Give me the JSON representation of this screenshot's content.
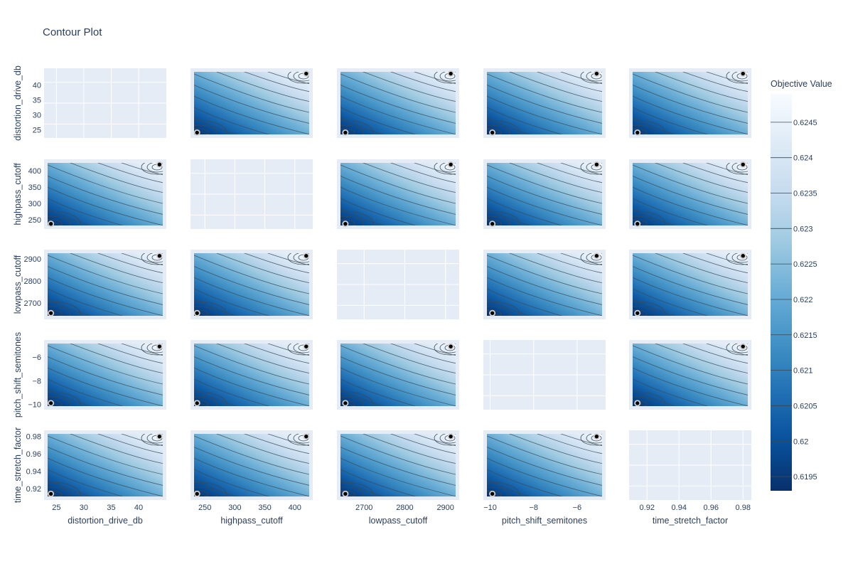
{
  "chart_data": {
    "type": "contour",
    "title": "Contour Plot",
    "params": [
      "distortion_drive_db",
      "highpass_cutoff",
      "lowpass_cutoff",
      "pitch_shift_semitones",
      "time_stretch_factor"
    ],
    "ranges": {
      "distortion_drive_db": [
        23.4,
        44.4
      ],
      "highpass_cutoff": [
        232,
        424
      ],
      "lowpass_cutoff": [
        2642,
        2925
      ],
      "pitch_shift_semitones": [
        -10.15,
        -4.85
      ],
      "time_stretch_factor": [
        0.911,
        0.983
      ]
    },
    "ticks": {
      "distortion_drive_db": {
        "values": [
          25,
          30,
          35,
          40
        ],
        "labels": [
          "25",
          "30",
          "35",
          "40"
        ]
      },
      "highpass_cutoff": {
        "values": [
          250,
          300,
          350,
          400
        ],
        "labels": [
          "250",
          "300",
          "350",
          "400"
        ]
      },
      "lowpass_cutoff": {
        "values": [
          2700,
          2800,
          2900
        ],
        "labels": [
          "2700",
          "2800",
          "2900"
        ]
      },
      "pitch_shift_semitones": {
        "values": [
          -10,
          -8,
          -6
        ],
        "labels": [
          "−10",
          "−8",
          "−6"
        ]
      },
      "time_stretch_factor": {
        "values": [
          0.92,
          0.94,
          0.96,
          0.98
        ],
        "labels": [
          "0.92",
          "0.94",
          "0.96",
          "0.98"
        ]
      }
    },
    "trials": {
      "distortion_drive_db": [
        24.0,
        43.8
      ],
      "highpass_cutoff": [
        237,
        419
      ],
      "lowpass_cutoff": [
        2654,
        2913
      ],
      "pitch_shift_semitones": [
        -9.9,
        -5.1
      ],
      "time_stretch_factor": [
        0.914,
        0.98
      ]
    },
    "colorbar": {
      "title": "Objective Value",
      "range": [
        0.6193,
        0.6249
      ],
      "ticks": [
        0.6195,
        0.62,
        0.6205,
        0.621,
        0.6215,
        0.622,
        0.6225,
        0.623,
        0.6235,
        0.624,
        0.6245
      ],
      "tick_labels": [
        "0.6195",
        "0.62",
        "0.6205",
        "0.621",
        "0.6215",
        "0.622",
        "0.6225",
        "0.623",
        "0.6235",
        "0.624",
        "0.6245"
      ],
      "colorscale": [
        "#08306b",
        "#08519c",
        "#2171b5",
        "#4292c6",
        "#6baed6",
        "#9ecae1",
        "#c6dbef",
        "#deebf7",
        "#f7fbff"
      ]
    },
    "grid_on": true,
    "legend": "colorbar-right"
  }
}
